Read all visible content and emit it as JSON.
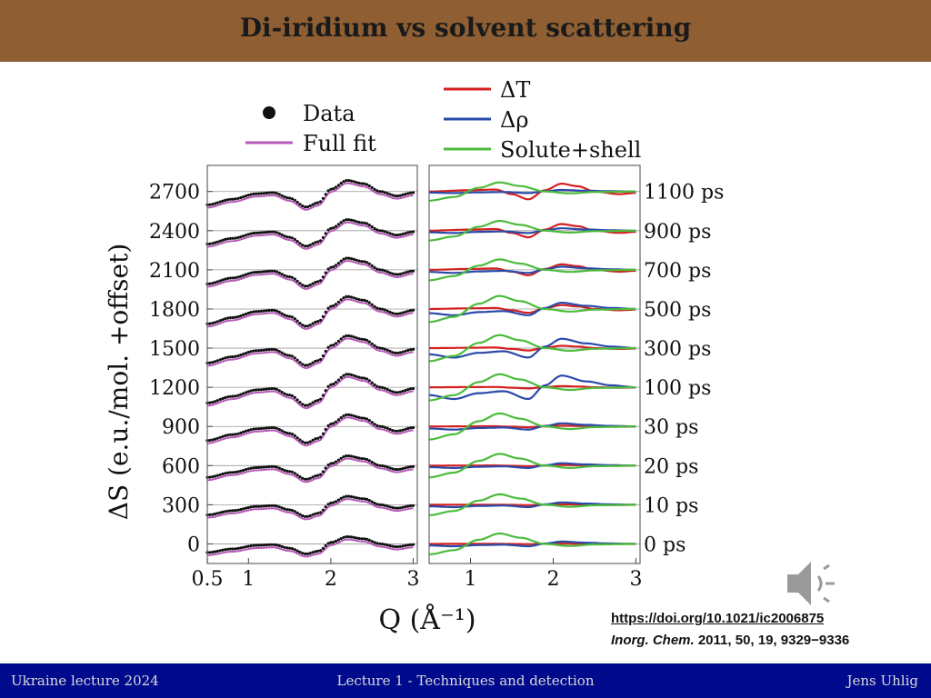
{
  "slide": {
    "title": "Di-iridium vs solvent scattering",
    "footer_left": "Ukraine lecture 2024",
    "footer_center": "Lecture 1 - Techniques and detection",
    "footer_right": "Jens Uhlig"
  },
  "reference": {
    "doi_link": "https://doi.org/10.1021/ic2006875",
    "journal": "Inorg. Chem.",
    "citation": "2011, 50, 19, 9329−9336"
  },
  "audio_icon": "speaker-icon",
  "colors": {
    "title_bar": "#8f5f33",
    "footer_bar": "#000a8c",
    "data": "#111111",
    "full_fit": "#b85bb8",
    "delta_t": "#d42020",
    "delta_rho": "#2a4aa8",
    "solute_shell": "#4cbb3c"
  },
  "chart_data": [
    {
      "type": "line",
      "panel": "left",
      "xlabel": "Q (Å⁻¹)",
      "ylabel": "ΔS (e.u./mol. +offset)",
      "xlim": [
        0.5,
        3.05
      ],
      "ylim": [
        -150,
        2900
      ],
      "x_ticks": [
        "0.5",
        "1",
        "2",
        "3"
      ],
      "y_ticks": [
        "0",
        "300",
        "600",
        "900",
        "1200",
        "1500",
        "1800",
        "2100",
        "2400",
        "2700"
      ],
      "legend": [
        "Data",
        "Full fit"
      ],
      "offsets": [
        0,
        300,
        600,
        900,
        1200,
        1500,
        1800,
        2100,
        2400,
        2700
      ],
      "amplitude_scale": [
        0.55,
        0.65,
        0.75,
        0.9,
        1.0,
        0.95,
        0.95,
        0.9,
        0.85,
        0.85
      ],
      "profile_x": [
        0.5,
        0.8,
        1.1,
        1.3,
        1.5,
        1.7,
        1.85,
        2.0,
        2.2,
        2.4,
        2.6,
        2.8,
        3.0
      ],
      "profile_y": [
        -120,
        -70,
        -20,
        -10,
        -60,
        -140,
        -100,
        20,
        100,
        70,
        0,
        -40,
        -10
      ]
    },
    {
      "type": "line",
      "panel": "right",
      "xlim": [
        0.5,
        3.05
      ],
      "x_ticks": [
        "1",
        "2",
        "3"
      ],
      "legend": [
        "ΔT",
        "Δρ",
        "Solute+shell"
      ],
      "delays": [
        "1100 ps",
        "900 ps",
        "700 ps",
        "500 ps",
        "300 ps",
        "100 ps",
        "30 ps",
        "20 ps",
        "10 ps",
        "0 ps"
      ],
      "offsets": [
        2700,
        2400,
        2100,
        1800,
        1500,
        1200,
        900,
        600,
        300,
        0
      ],
      "series": [
        {
          "name": "ΔT",
          "amplitude": [
            1.0,
            0.85,
            0.7,
            0.5,
            0.3,
            0.15,
            0.1,
            0.08,
            0.05,
            0.03
          ],
          "profile_x": [
            0.5,
            1.0,
            1.3,
            1.5,
            1.7,
            1.9,
            2.1,
            2.3,
            2.5,
            2.8,
            3.0
          ],
          "profile_y": [
            0,
            10,
            15,
            -20,
            -60,
            10,
            60,
            40,
            0,
            -20,
            -10
          ]
        },
        {
          "name": "Δρ",
          "amplitude": [
            0.2,
            0.3,
            0.4,
            0.8,
            1.2,
            1.5,
            0.4,
            0.3,
            0.3,
            0.3
          ],
          "profile_x": [
            0.5,
            0.8,
            1.1,
            1.4,
            1.7,
            1.9,
            2.1,
            2.4,
            2.7,
            3.0
          ],
          "profile_y": [
            -40,
            -60,
            -30,
            -20,
            -60,
            10,
            60,
            30,
            10,
            0
          ]
        },
        {
          "name": "Solute+shell",
          "amplitude": [
            0.7,
            0.75,
            0.8,
            1.0,
            1.0,
            1.0,
            1.0,
            0.9,
            0.8,
            0.8
          ],
          "profile_x": [
            0.5,
            0.8,
            1.1,
            1.35,
            1.6,
            1.9,
            2.2,
            2.5,
            3.0
          ],
          "profile_y": [
            -100,
            -60,
            40,
            100,
            60,
            0,
            -20,
            -5,
            0
          ]
        }
      ]
    }
  ]
}
